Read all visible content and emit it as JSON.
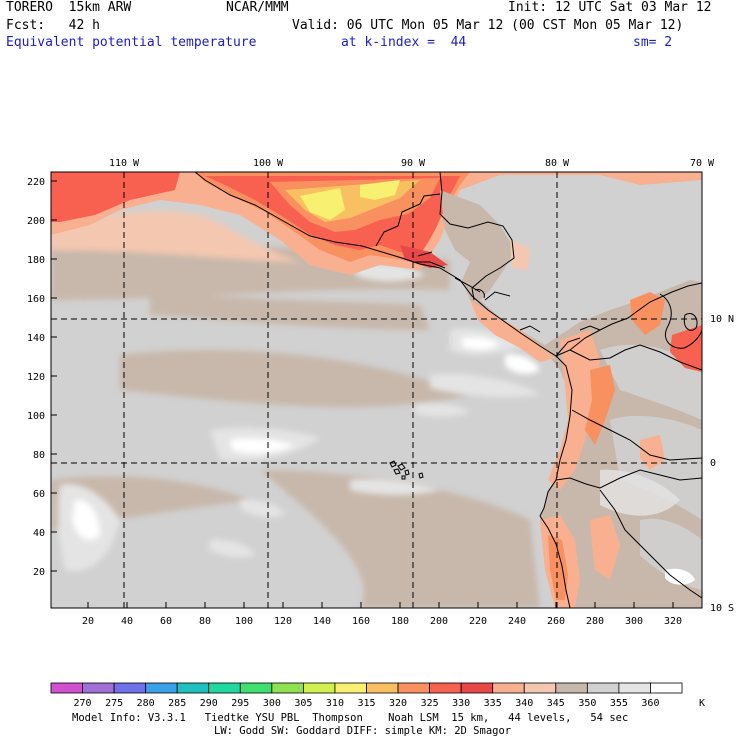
{
  "header": {
    "model": "TORERO  15km ARW",
    "center": "NCAR/MMM",
    "init": "Init: 12 UTC Sat 03 Mar 12",
    "fcst": "Fcst:   42 h",
    "valid": "Valid: 06 UTC Mon 05 Mar 12 (00 CST Mon 05 Mar 12)",
    "field": "Equivalent potential temperature",
    "level": "at k-index =  44",
    "smoothing": "sm= 2"
  },
  "map": {
    "top_labels": [
      "110 W",
      "100 W",
      "90 W",
      "80 W",
      "70 W"
    ],
    "right_labels": [
      "10 N",
      "0",
      "10 S"
    ],
    "y_ticks": [
      "220",
      "200",
      "180",
      "160",
      "140",
      "120",
      "100",
      "80",
      "60",
      "40",
      "20"
    ],
    "x_ticks": [
      "20",
      "40",
      "60",
      "80",
      "100",
      "120",
      "140",
      "160",
      "180",
      "200",
      "220",
      "240",
      "260",
      "280",
      "300",
      "320"
    ],
    "ocean_color": "#d1d1d1",
    "land_color": "#c8b8ab"
  },
  "legend": {
    "labels": [
      "270",
      "275",
      "280",
      "285",
      "290",
      "295",
      "300",
      "305",
      "310",
      "315",
      "320",
      "325",
      "330",
      "335",
      "340",
      "345",
      "350",
      "355",
      "360"
    ],
    "unit": "K",
    "colors": [
      "#d050d0",
      "#a070d8",
      "#7070e8",
      "#3aa0e8",
      "#20c0c0",
      "#20d8a0",
      "#40e070",
      "#90e050",
      "#d0f050",
      "#f8f070",
      "#f8c060",
      "#f89060",
      "#f86050",
      "#e84848",
      "#f8b090",
      "#f4c8b0",
      "#c8b8ab",
      "#d1d1d1",
      "#e4e4e4",
      "#ffffff"
    ]
  },
  "footer": {
    "line1": "Model Info: V3.3.1   Tiedtke YSU PBL  Thompson    Noah LSM  15 km,   44 levels,   54 sec",
    "line2": "LW: Godd SW: Goddard DIFF: simple KM: 2D Smagor"
  }
}
